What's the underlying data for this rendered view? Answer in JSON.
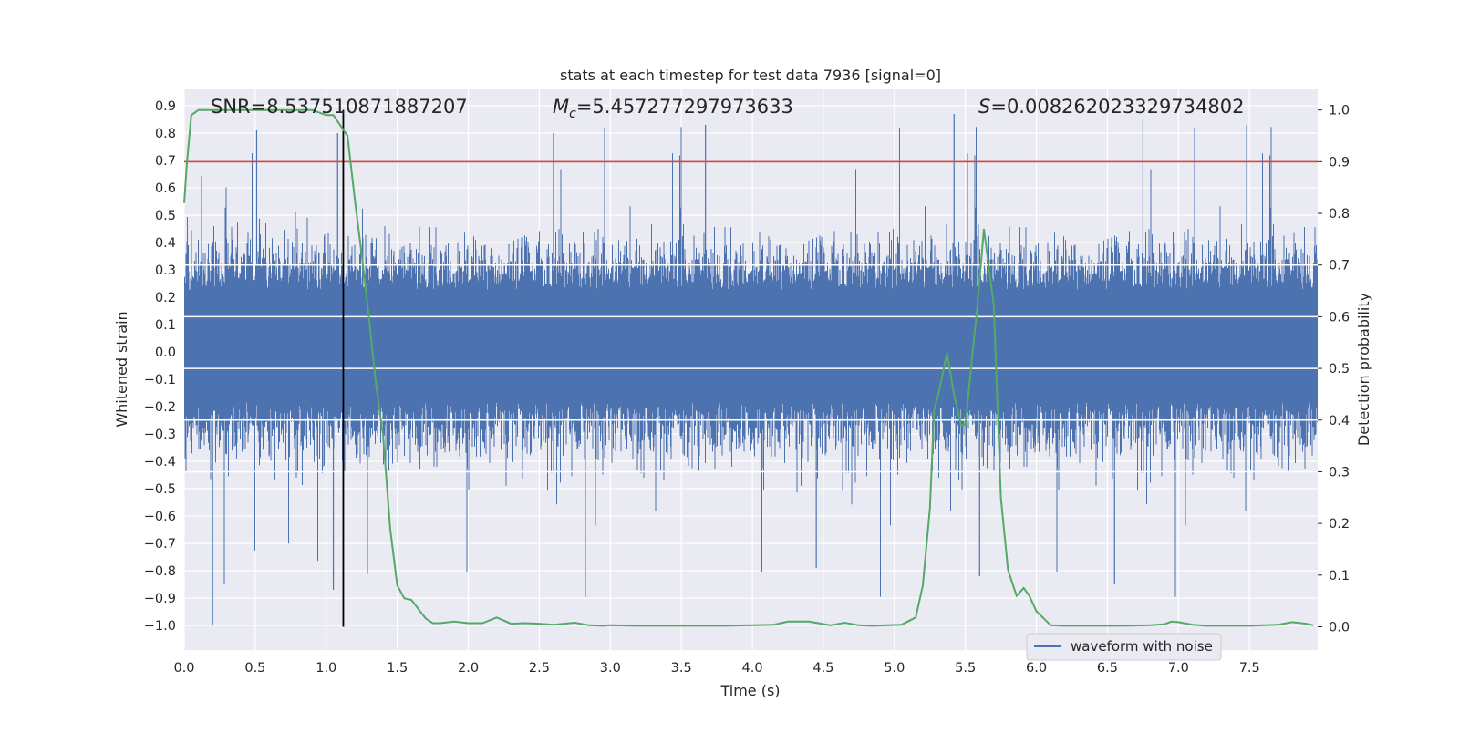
{
  "chart_data": {
    "type": "line",
    "title": "stats at each timestep for test data 7936 [signal=0]",
    "xlabel": "Time (s)",
    "ylabel": "Whitened strain",
    "ylabel_right": "Detection probability",
    "xlim": [
      0.0,
      7.98
    ],
    "ylim": [
      -1.09,
      0.96
    ],
    "ylim_right": [
      -0.045,
      1.04
    ],
    "x_ticks": [
      "0.0",
      "0.5",
      "1.0",
      "1.5",
      "2.0",
      "2.5",
      "3.0",
      "3.5",
      "4.0",
      "4.5",
      "5.0",
      "5.5",
      "6.0",
      "6.5",
      "7.0",
      "7.5"
    ],
    "y_ticks": [
      "0.9",
      "0.8",
      "0.7",
      "0.6",
      "0.5",
      "0.4",
      "0.3",
      "0.2",
      "0.1",
      "0.0",
      "−0.1",
      "−0.2",
      "−0.3",
      "−0.4",
      "−0.5",
      "−0.6",
      "−0.7",
      "−0.8",
      "−0.9",
      "−1.0"
    ],
    "y_right_ticks": [
      "1.0",
      "0.9",
      "0.8",
      "0.7",
      "0.6",
      "0.5",
      "0.4",
      "0.3",
      "0.2",
      "0.1",
      "0.0"
    ],
    "annotations": {
      "snr": "SNR=8.537510871887207",
      "mc_symbol": "M",
      "mc_subscript": "c",
      "mc_value": "=5.457277297973633",
      "s_symbol": "S",
      "s_value": "=0.008262023329734802"
    },
    "threshold": {
      "value": 0.9,
      "axis": "right",
      "color": "#c44e52"
    },
    "vline": {
      "x": 1.12,
      "color": "#000000"
    },
    "legend": {
      "entries": [
        "waveform with noise"
      ],
      "location": "lower right"
    },
    "series": [
      {
        "name": "waveform with noise",
        "axis": "left",
        "color": "#4c72b0",
        "sample_rate": 2048,
        "duration": 7.98,
        "typical_range": [
          -0.45,
          0.5
        ],
        "peak_max": 0.88,
        "peak_min": -1.0
      },
      {
        "name": "detection probability",
        "axis": "right",
        "color": "#55a868",
        "x": [
          0.0,
          0.02,
          0.05,
          0.1,
          0.2,
          0.3,
          0.5,
          0.7,
          0.9,
          1.0,
          1.05,
          1.1,
          1.15,
          1.2,
          1.25,
          1.3,
          1.35,
          1.4,
          1.45,
          1.5,
          1.55,
          1.6,
          1.65,
          1.7,
          1.75,
          1.8,
          1.9,
          2.0,
          2.1,
          2.2,
          2.25,
          2.3,
          2.4,
          2.5,
          2.6,
          2.75,
          2.85,
          2.95,
          3.0,
          3.2,
          3.4,
          3.5,
          3.8,
          4.0,
          4.15,
          4.25,
          4.4,
          4.55,
          4.65,
          4.75,
          4.85,
          4.95,
          5.05,
          5.15,
          5.2,
          5.25,
          5.28,
          5.31,
          5.37,
          5.42,
          5.47,
          5.5,
          5.55,
          5.58,
          5.63,
          5.7,
          5.75,
          5.8,
          5.86,
          5.91,
          5.95,
          6.0,
          6.1,
          6.2,
          6.4,
          6.6,
          6.8,
          6.9,
          6.95,
          7.0,
          7.1,
          7.2,
          7.5,
          7.6,
          7.7,
          7.8,
          7.9,
          7.95
        ],
        "y": [
          0.82,
          0.9,
          0.99,
          1.0,
          1.0,
          1.0,
          1.0,
          1.0,
          1.0,
          0.99,
          0.99,
          0.97,
          0.95,
          0.83,
          0.72,
          0.6,
          0.47,
          0.37,
          0.19,
          0.08,
          0.055,
          0.052,
          0.034,
          0.016,
          0.007,
          0.007,
          0.01,
          0.007,
          0.007,
          0.018,
          0.012,
          0.006,
          0.007,
          0.006,
          0.004,
          0.008,
          0.003,
          0.002,
          0.003,
          0.002,
          0.002,
          0.002,
          0.002,
          0.003,
          0.004,
          0.01,
          0.01,
          0.003,
          0.008,
          0.003,
          0.002,
          0.003,
          0.004,
          0.018,
          0.08,
          0.23,
          0.42,
          0.45,
          0.53,
          0.45,
          0.39,
          0.39,
          0.53,
          0.61,
          0.77,
          0.62,
          0.25,
          0.11,
          0.06,
          0.075,
          0.06,
          0.03,
          0.003,
          0.002,
          0.002,
          0.002,
          0.003,
          0.005,
          0.01,
          0.009,
          0.004,
          0.002,
          0.002,
          0.003,
          0.004,
          0.009,
          0.006,
          0.003
        ]
      }
    ]
  }
}
